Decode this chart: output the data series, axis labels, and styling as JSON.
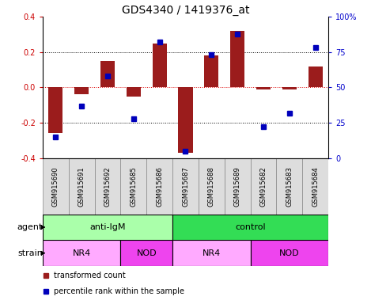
{
  "title": "GDS4340 / 1419376_at",
  "samples": [
    "GSM915690",
    "GSM915691",
    "GSM915692",
    "GSM915685",
    "GSM915686",
    "GSM915687",
    "GSM915688",
    "GSM915689",
    "GSM915682",
    "GSM915683",
    "GSM915684"
  ],
  "bar_values": [
    -0.26,
    -0.04,
    0.15,
    -0.05,
    0.25,
    -0.37,
    0.18,
    0.32,
    -0.01,
    -0.01,
    0.12
  ],
  "scatter_values": [
    15,
    37,
    58,
    28,
    82,
    5,
    73,
    88,
    22,
    32,
    78
  ],
  "ylim_left": [
    -0.4,
    0.4
  ],
  "ylim_right": [
    0,
    100
  ],
  "yticks_left": [
    -0.4,
    -0.2,
    0.0,
    0.2,
    0.4
  ],
  "yticks_right": [
    0,
    25,
    50,
    75,
    100
  ],
  "ytick_labels_right": [
    "0",
    "25",
    "50",
    "75",
    "100%"
  ],
  "bar_color": "#9B1C1C",
  "scatter_color": "#0000BB",
  "grid_color": "#000000",
  "zero_line_color": "#DD0000",
  "agent_groups": [
    {
      "label": "anti-IgM",
      "start": 0,
      "end": 5,
      "color": "#AAFFAA"
    },
    {
      "label": "control",
      "start": 5,
      "end": 11,
      "color": "#33DD55"
    }
  ],
  "strain_groups": [
    {
      "label": "NR4",
      "start": 0,
      "end": 3,
      "color": "#FFAAFF"
    },
    {
      "label": "NOD",
      "start": 3,
      "end": 5,
      "color": "#EE44EE"
    },
    {
      "label": "NR4",
      "start": 5,
      "end": 8,
      "color": "#FFAAFF"
    },
    {
      "label": "NOD",
      "start": 8,
      "end": 11,
      "color": "#EE44EE"
    }
  ],
  "agent_label": "agent",
  "strain_label": "strain",
  "legend_bar_label": "transformed count",
  "legend_scatter_label": "percentile rank within the sample",
  "title_fontsize": 10,
  "tick_fontsize": 7,
  "label_fontsize": 8,
  "sample_fontsize": 6,
  "group_fontsize": 8
}
